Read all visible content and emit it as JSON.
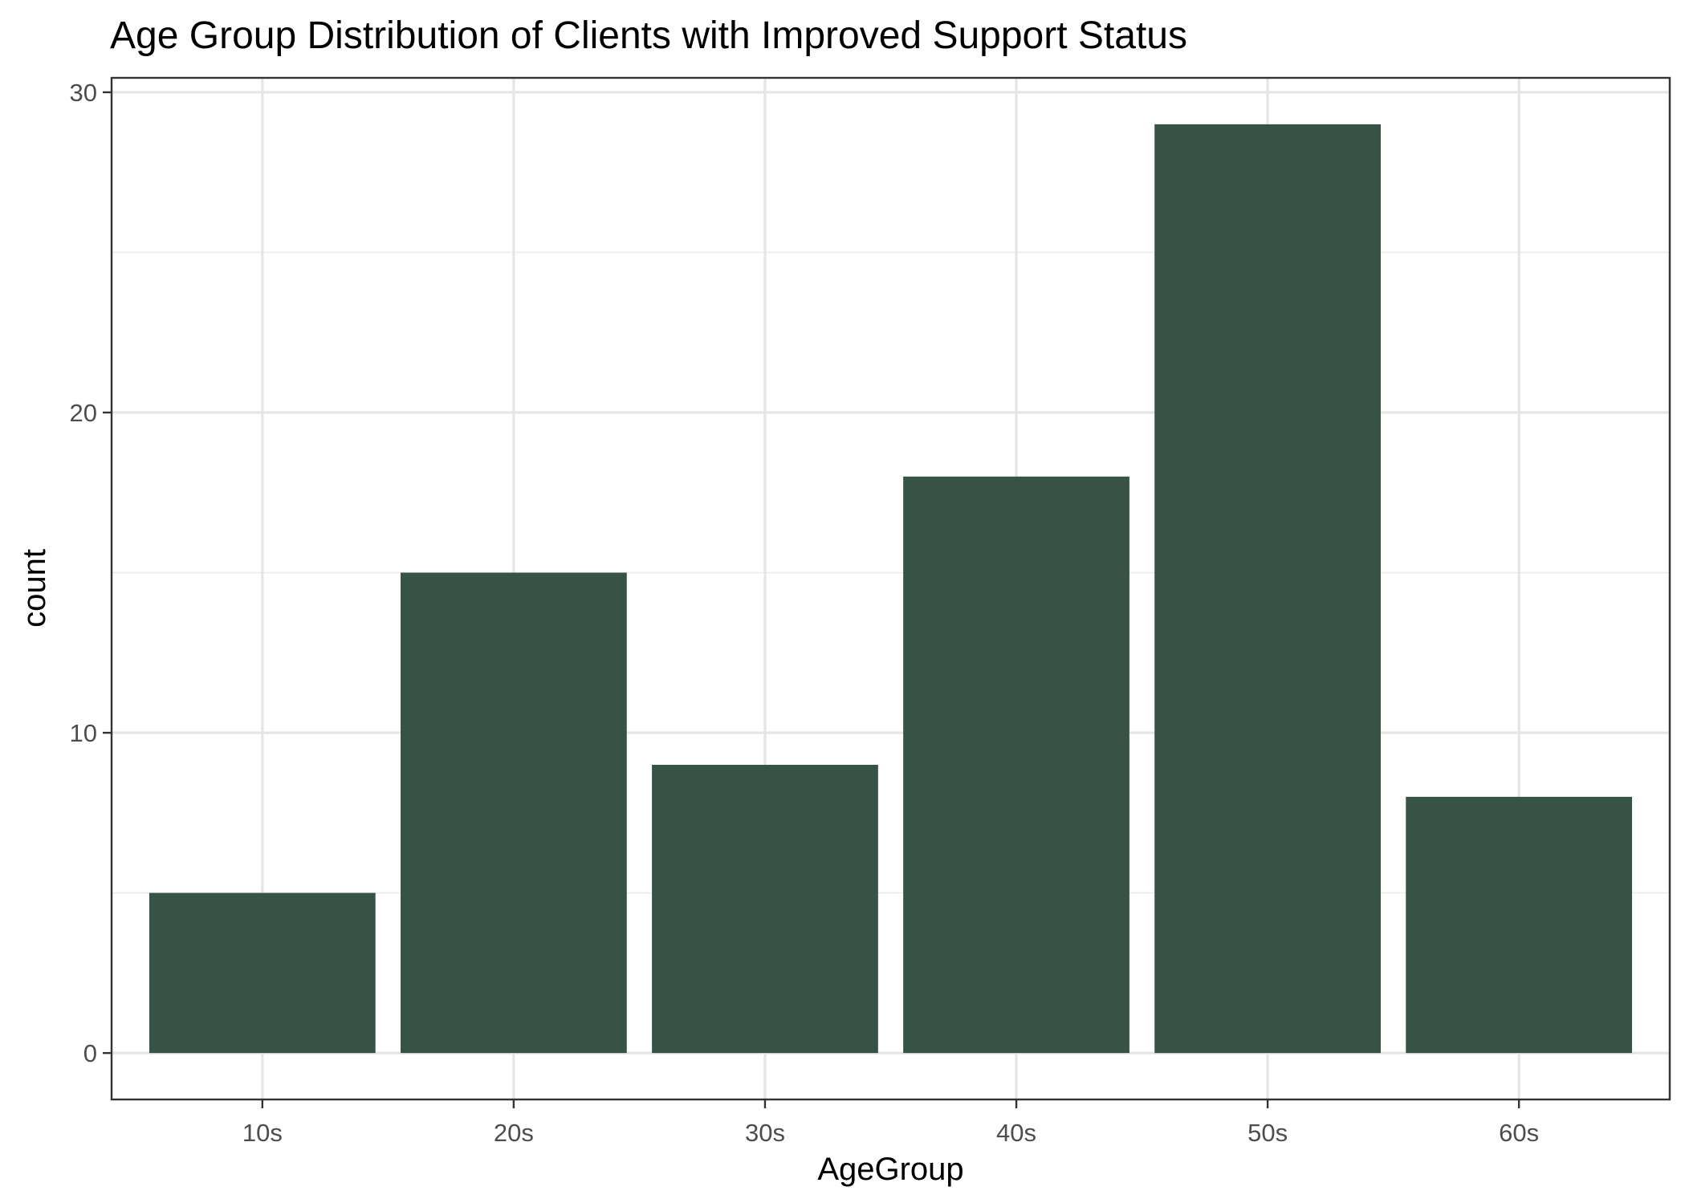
{
  "chart_data": {
    "type": "bar",
    "title": "Age Group Distribution of Clients with Improved Support Status",
    "xlabel": "AgeGroup",
    "ylabel": "count",
    "categories": [
      "10s",
      "20s",
      "30s",
      "40s",
      "50s",
      "60s"
    ],
    "values": [
      5,
      15,
      9,
      18,
      29,
      8
    ],
    "ylim": [
      -1.45,
      30.45
    ],
    "yticks": [
      0,
      10,
      20,
      30
    ],
    "y_minor_ticks": [
      5,
      15,
      25
    ],
    "grid": true,
    "legend": "none",
    "bar_color": "#375345"
  }
}
